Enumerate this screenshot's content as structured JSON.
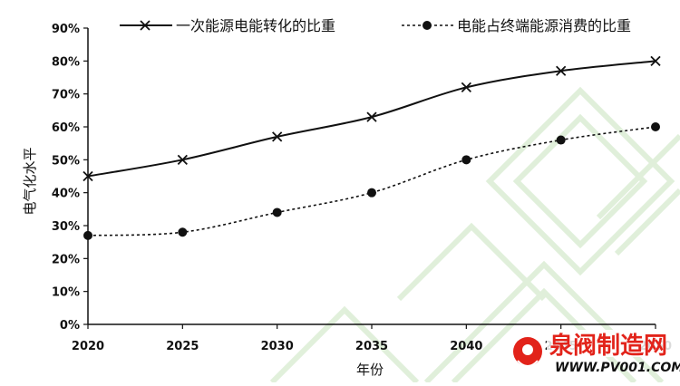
{
  "chart_data": {
    "type": "line",
    "title": "",
    "x": [
      2020,
      2025,
      2030,
      2035,
      2040,
      2045,
      2050
    ],
    "xlabel": "年份",
    "ylabel": "电气化水平",
    "ylim": [
      0,
      90
    ],
    "yticks": [
      "0%",
      "10%",
      "20%",
      "30%",
      "40%",
      "50%",
      "60%",
      "70%",
      "80%",
      "90%"
    ],
    "xticks": [
      "2020",
      "2025",
      "2030",
      "2035",
      "2040",
      "2045",
      "2050"
    ],
    "grid": false,
    "legend_position": "top",
    "series": [
      {
        "name": "一次能源电能转化的比重",
        "values": [
          45,
          50,
          57,
          63,
          72,
          77,
          80
        ],
        "marker": "x",
        "line": "solid",
        "color": "#111111"
      },
      {
        "name": "电能占终端能源消费的比重",
        "values": [
          27,
          28,
          34,
          40,
          50,
          56,
          60
        ],
        "marker": "circle",
        "line": "dashed",
        "color": "#111111"
      }
    ]
  },
  "watermark": {
    "brand": "泉阀制造网",
    "url": "WWW.PV001.COM",
    "color": "#e2231a"
  }
}
